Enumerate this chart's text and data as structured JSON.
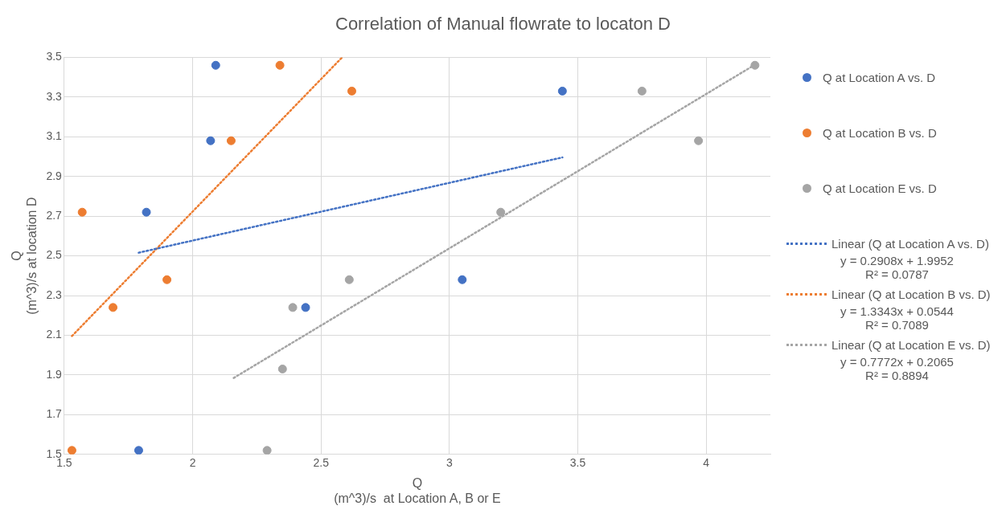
{
  "chart_data": {
    "type": "scatter",
    "title": "Correlation of Manual flowrate to locaton D",
    "xlabel": "Q\n(m^3)/s  at Location A, B or E",
    "ylabel": "Q\n(m^3)/s at location D",
    "xlim": [
      1.5,
      4.25
    ],
    "xticks": [
      1.5,
      2,
      2.5,
      3,
      3.5,
      4
    ],
    "ylim": [
      1.5,
      3.5
    ],
    "yticks": [
      1.5,
      1.7,
      1.9,
      2.1,
      2.3,
      2.5,
      2.7,
      2.9,
      3.1,
      3.3,
      3.5
    ],
    "grid": true,
    "legend": "right",
    "marker": "circle",
    "series": [
      {
        "name": "Q at Location A vs. D",
        "type": "scatter",
        "color": "#4472c4",
        "x": [
          2.09,
          2.07,
          1.82,
          1.79,
          2.44,
          3.05,
          3.44
        ],
        "values": [
          3.46,
          3.08,
          2.72,
          1.52,
          2.24,
          2.38,
          3.33
        ]
      },
      {
        "name": "Q at Location B vs. D",
        "type": "scatter",
        "color": "#ed7d31",
        "x": [
          2.34,
          2.62,
          2.15,
          1.57,
          1.9,
          1.69,
          1.53
        ],
        "values": [
          3.46,
          3.33,
          3.08,
          2.72,
          2.38,
          2.24,
          1.52
        ]
      },
      {
        "name": "Q at Location E vs. D",
        "type": "scatter",
        "color": "#a5a5a5",
        "x": [
          4.19,
          3.75,
          3.97,
          3.2,
          2.61,
          2.39,
          2.35,
          2.29
        ],
        "values": [
          3.46,
          3.33,
          3.08,
          2.72,
          2.38,
          2.24,
          1.93,
          1.52
        ]
      },
      {
        "name": "Linear (Q at Location A vs. D)",
        "type": "line",
        "line_style": "dotted",
        "marker": "none",
        "color": "#4472c4",
        "x": [
          1.79,
          3.44
        ],
        "values": [
          2.516,
          2.996
        ]
      },
      {
        "name": "Linear (Q at Location B vs. D)",
        "type": "line",
        "line_style": "dotted",
        "marker": "none",
        "color": "#ed7d31",
        "x": [
          1.53,
          2.58
        ],
        "values": [
          2.096,
          3.497
        ]
      },
      {
        "name": "Linear (Q at Location E vs. D)",
        "type": "line",
        "line_style": "dotted",
        "marker": "none",
        "color": "#a5a5a5",
        "x": [
          2.16,
          4.19
        ],
        "values": [
          1.885,
          3.463
        ]
      }
    ],
    "annotations": [
      "y = 0.2908x + 1.9952\nR² = 0.0787",
      "y = 1.3343x + 0.0544\nR² = 0.7089",
      "y = 0.7772x + 0.2065\nR² = 0.8894"
    ]
  }
}
